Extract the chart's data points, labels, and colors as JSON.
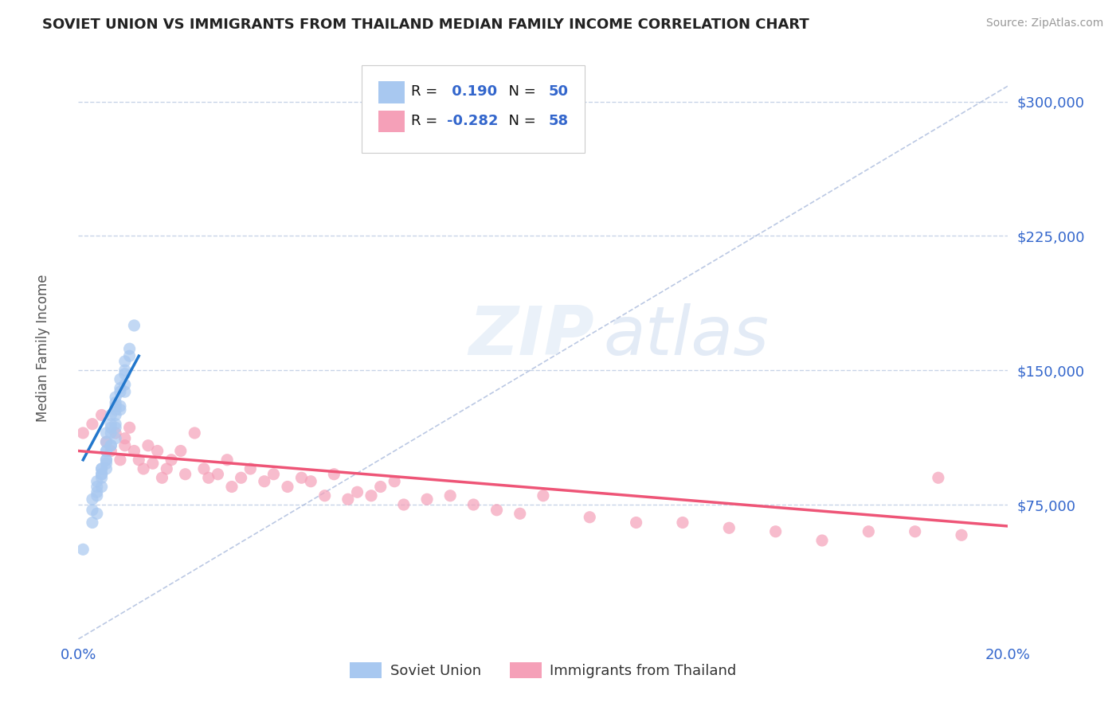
{
  "title": "SOVIET UNION VS IMMIGRANTS FROM THAILAND MEDIAN FAMILY INCOME CORRELATION CHART",
  "source": "Source: ZipAtlas.com",
  "ylabel": "Median Family Income",
  "ytick_labels": [
    "$75,000",
    "$150,000",
    "$225,000",
    "$300,000"
  ],
  "ytick_values": [
    75000,
    150000,
    225000,
    300000
  ],
  "xlim": [
    0.0,
    0.2
  ],
  "ylim": [
    0,
    325000
  ],
  "series1_label": "Soviet Union",
  "series2_label": "Immigrants from Thailand",
  "series1_color": "#a8c8f0",
  "series2_color": "#f5a0b8",
  "trendline1_color": "#2277cc",
  "trendline2_color": "#ee5577",
  "refline_color": "#aabbdd",
  "watermark_zip": "ZIP",
  "watermark_atlas": "atlas",
  "background_color": "#ffffff",
  "grid_color": "#c8d4e8",
  "title_color": "#222222",
  "axis_label_color": "#3366cc",
  "soviet_x": [
    0.001,
    0.003,
    0.004,
    0.004,
    0.005,
    0.005,
    0.005,
    0.006,
    0.006,
    0.006,
    0.006,
    0.006,
    0.007,
    0.007,
    0.007,
    0.007,
    0.008,
    0.008,
    0.008,
    0.008,
    0.008,
    0.009,
    0.009,
    0.009,
    0.01,
    0.01,
    0.01,
    0.011,
    0.011,
    0.012,
    0.003,
    0.004,
    0.005,
    0.006,
    0.006,
    0.007,
    0.008,
    0.008,
    0.009,
    0.01,
    0.003,
    0.004,
    0.005,
    0.006,
    0.007,
    0.008,
    0.009,
    0.01,
    0.004,
    0.005
  ],
  "soviet_y": [
    50000,
    65000,
    70000,
    80000,
    85000,
    90000,
    95000,
    95000,
    100000,
    105000,
    110000,
    115000,
    115000,
    118000,
    120000,
    125000,
    125000,
    128000,
    130000,
    132000,
    135000,
    138000,
    140000,
    145000,
    148000,
    150000,
    155000,
    158000,
    162000,
    175000,
    72000,
    88000,
    92000,
    98000,
    105000,
    108000,
    112000,
    120000,
    130000,
    142000,
    78000,
    85000,
    92000,
    100000,
    108000,
    118000,
    128000,
    138000,
    82000,
    95000
  ],
  "thai_x": [
    0.001,
    0.003,
    0.005,
    0.006,
    0.007,
    0.008,
    0.009,
    0.01,
    0.01,
    0.011,
    0.012,
    0.013,
    0.014,
    0.015,
    0.016,
    0.017,
    0.018,
    0.019,
    0.02,
    0.022,
    0.023,
    0.025,
    0.027,
    0.028,
    0.03,
    0.032,
    0.033,
    0.035,
    0.037,
    0.04,
    0.042,
    0.045,
    0.048,
    0.05,
    0.053,
    0.055,
    0.058,
    0.06,
    0.063,
    0.065,
    0.068,
    0.07,
    0.075,
    0.08,
    0.085,
    0.09,
    0.095,
    0.1,
    0.11,
    0.12,
    0.13,
    0.14,
    0.15,
    0.16,
    0.17,
    0.18,
    0.185,
    0.19
  ],
  "thai_y": [
    115000,
    120000,
    125000,
    110000,
    105000,
    115000,
    100000,
    112000,
    108000,
    118000,
    105000,
    100000,
    95000,
    108000,
    98000,
    105000,
    90000,
    95000,
    100000,
    105000,
    92000,
    115000,
    95000,
    90000,
    92000,
    100000,
    85000,
    90000,
    95000,
    88000,
    92000,
    85000,
    90000,
    88000,
    80000,
    92000,
    78000,
    82000,
    80000,
    85000,
    88000,
    75000,
    78000,
    80000,
    75000,
    72000,
    70000,
    80000,
    68000,
    65000,
    65000,
    62000,
    60000,
    55000,
    60000,
    60000,
    90000,
    58000
  ],
  "thai_trendline_x0": 0.0,
  "thai_trendline_y0": 105000,
  "thai_trendline_x1": 0.2,
  "thai_trendline_y1": 63000,
  "soviet_trendline_x0": 0.001,
  "soviet_trendline_y0": 100000,
  "soviet_trendline_x1": 0.013,
  "soviet_trendline_y1": 158000
}
